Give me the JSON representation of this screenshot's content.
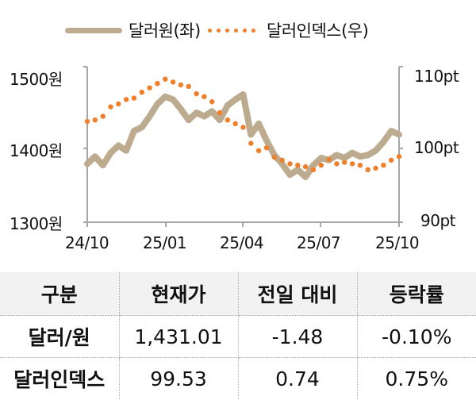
{
  "legend": {
    "series1": {
      "label": "달러원(좌)",
      "color": "#bcab8f",
      "style": "line"
    },
    "series2": {
      "label": "달러인덱스(우)",
      "color": "#f07f2a",
      "style": "dots"
    }
  },
  "chart_data": {
    "type": "line",
    "title": "",
    "xlabel": "",
    "ylabel_left": "달러원",
    "ylabel_right": "달러인덱스",
    "x_ticks": [
      "24/10",
      "25/01",
      "25/04",
      "25/07",
      "25/10"
    ],
    "y_left_ticks": [
      "1300원",
      "1400원",
      "1500원"
    ],
    "y_left_range": [
      1300,
      1500
    ],
    "y_right_ticks": [
      "90pt",
      "100pt",
      "110pt"
    ],
    "y_right_range": [
      90,
      110
    ],
    "grid": false,
    "legend_position": "top",
    "series": [
      {
        "name": "달러원(좌)",
        "axis": "left",
        "x_months": [
          0,
          0.3,
          0.6,
          0.9,
          1.2,
          1.5,
          1.8,
          2.1,
          2.4,
          2.7,
          3.0,
          3.3,
          3.6,
          3.9,
          4.2,
          4.5,
          4.8,
          5.1,
          5.4,
          5.7,
          6.0,
          6.3,
          6.6,
          6.9,
          7.2,
          7.5,
          7.8,
          8.1,
          8.4,
          8.7,
          9.0,
          9.3,
          9.6,
          9.9,
          10.2,
          10.5,
          10.8,
          11.1,
          11.4,
          11.7,
          12.0
        ],
        "values": [
          1380,
          1390,
          1378,
          1395,
          1405,
          1398,
          1425,
          1430,
          1445,
          1462,
          1472,
          1468,
          1455,
          1440,
          1450,
          1445,
          1452,
          1440,
          1460,
          1468,
          1475,
          1420,
          1435,
          1412,
          1392,
          1380,
          1365,
          1372,
          1362,
          1378,
          1388,
          1385,
          1392,
          1388,
          1395,
          1390,
          1392,
          1398,
          1410,
          1425,
          1420
        ]
      },
      {
        "name": "달러인덱스(우)",
        "axis": "right",
        "x_months": [
          0,
          0.3,
          0.6,
          0.9,
          1.2,
          1.5,
          1.8,
          2.1,
          2.4,
          2.7,
          3.0,
          3.3,
          3.6,
          3.9,
          4.2,
          4.5,
          4.8,
          5.1,
          5.4,
          5.7,
          6.0,
          6.3,
          6.6,
          6.9,
          7.2,
          7.5,
          7.8,
          8.1,
          8.4,
          8.7,
          9.0,
          9.3,
          9.6,
          9.9,
          10.2,
          10.5,
          10.8,
          11.1,
          11.4,
          11.7,
          12.0
        ],
        "values": [
          103.8,
          104.0,
          104.5,
          105.8,
          106.2,
          106.8,
          107.0,
          107.8,
          108.4,
          109.0,
          109.6,
          109.2,
          108.8,
          108.6,
          107.6,
          107.2,
          106.5,
          105.0,
          104.0,
          103.5,
          103.0,
          100.8,
          99.8,
          100.2,
          98.9,
          98.5,
          98.0,
          97.8,
          97.6,
          97.2,
          97.8,
          98.6,
          98.0,
          98.2,
          98.0,
          97.8,
          97.2,
          97.4,
          97.8,
          98.5,
          99.0
        ]
      }
    ]
  },
  "table": {
    "headers": [
      "구분",
      "현재가",
      "전일 대비",
      "등락률"
    ],
    "rows": [
      {
        "name": "달러/원",
        "price": "1,431.01",
        "change": "-1.48",
        "pct": "-0.10%"
      },
      {
        "name": "달러인덱스",
        "price": "99.53",
        "change": "0.74",
        "pct": "0.75%"
      }
    ]
  },
  "colors": {
    "axis": "#a6a6a6",
    "header_bg": "#f2f2f2"
  }
}
